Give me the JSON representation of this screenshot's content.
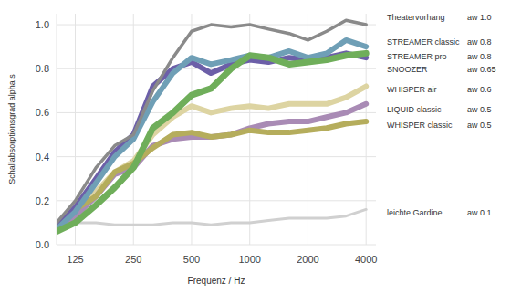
{
  "chart_data": {
    "type": "line",
    "x_label": "Frequenz / Hz",
    "y_label": "Schallabsorptionsgrad  alpha s",
    "x": [
      100,
      125,
      160,
      200,
      250,
      315,
      400,
      500,
      630,
      800,
      1000,
      1250,
      1600,
      2000,
      2500,
      3150,
      4000
    ],
    "xlim": [
      100,
      4500
    ],
    "xticks": [
      125,
      250,
      500,
      1000,
      2000,
      4000
    ],
    "ylim": [
      0,
      1.05
    ],
    "yticks": [
      {
        "value": 0,
        "label": "0.0"
      },
      {
        "value": 0.2,
        "label": "0.2"
      },
      {
        "value": 0.4,
        "label": "0.4"
      },
      {
        "value": 0.6,
        "label": "0.6"
      },
      {
        "value": 0.8,
        "label": "0.8"
      },
      {
        "value": 1,
        "label": "1.0"
      }
    ],
    "log": "x",
    "grid": true,
    "series": [
      {
        "name": "Theatervorhang",
        "rating": "aw 1.0",
        "color": "#8a8a8a",
        "values": [
          0.1,
          0.2,
          0.35,
          0.45,
          0.5,
          0.7,
          0.85,
          0.97,
          1.0,
          0.99,
          1.0,
          0.98,
          0.96,
          0.93,
          0.97,
          1.02,
          1.0
        ]
      },
      {
        "name": "STREAMER classic",
        "rating": "aw 0.8",
        "color": "#6f9fb6",
        "values": [
          0.07,
          0.15,
          0.28,
          0.4,
          0.48,
          0.65,
          0.78,
          0.85,
          0.82,
          0.84,
          0.86,
          0.85,
          0.88,
          0.85,
          0.87,
          0.93,
          0.9
        ]
      },
      {
        "name": "STREAMER pro",
        "rating": "aw 0.8",
        "color": "#6c5fa8",
        "values": [
          0.08,
          0.17,
          0.3,
          0.42,
          0.5,
          0.72,
          0.8,
          0.83,
          0.78,
          0.82,
          0.84,
          0.83,
          0.85,
          0.84,
          0.85,
          0.87,
          0.85
        ]
      },
      {
        "name": "SNOOZER",
        "rating": "aw 0.65",
        "color": "#6fae5a",
        "values": [
          0.06,
          0.1,
          0.18,
          0.26,
          0.35,
          0.53,
          0.6,
          0.68,
          0.71,
          0.8,
          0.86,
          0.85,
          0.82,
          0.83,
          0.84,
          0.86,
          0.87
        ]
      },
      {
        "name": "WHISPER air",
        "rating": "aw 0.6",
        "color": "#ddd4a2",
        "values": [
          0.07,
          0.16,
          0.24,
          0.33,
          0.38,
          0.5,
          0.58,
          0.63,
          0.6,
          0.62,
          0.63,
          0.62,
          0.64,
          0.64,
          0.64,
          0.67,
          0.72
        ]
      },
      {
        "name": "LIQUID classic",
        "rating": "aw 0.5",
        "color": "#a98bb5",
        "values": [
          0.06,
          0.13,
          0.22,
          0.32,
          0.35,
          0.45,
          0.48,
          0.49,
          0.49,
          0.5,
          0.53,
          0.55,
          0.56,
          0.56,
          0.58,
          0.6,
          0.64
        ]
      },
      {
        "name": "WHISPER classic",
        "rating": "aw 0.5",
        "color": "#b5ad5c",
        "values": [
          0.07,
          0.16,
          0.22,
          0.33,
          0.37,
          0.44,
          0.5,
          0.51,
          0.49,
          0.5,
          0.52,
          0.51,
          0.51,
          0.52,
          0.53,
          0.55,
          0.56
        ]
      },
      {
        "name": "leichte Gardine",
        "rating": "aw 0.1",
        "color": "#d0d0d0",
        "values": [
          0.1,
          0.1,
          0.1,
          0.09,
          0.09,
          0.09,
          0.1,
          0.1,
          0.09,
          0.1,
          0.1,
          0.11,
          0.12,
          0.12,
          0.12,
          0.13,
          0.16
        ]
      }
    ]
  }
}
